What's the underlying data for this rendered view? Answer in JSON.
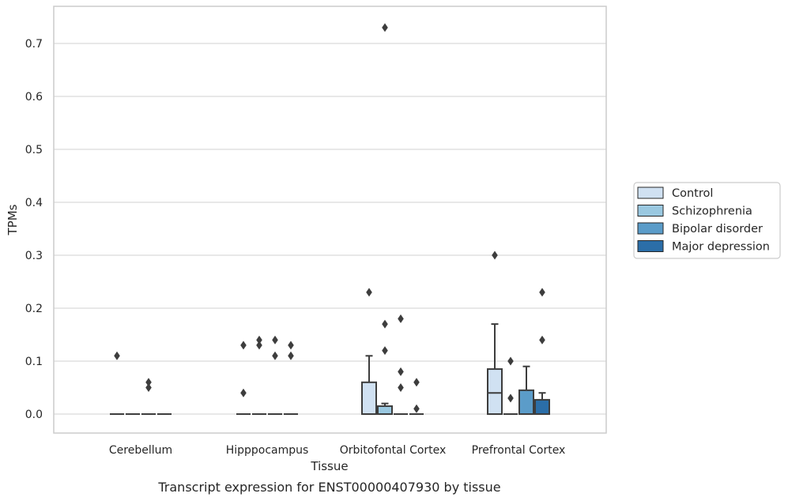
{
  "chart_data": {
    "type": "box",
    "title": "",
    "caption": "Transcript expression for ENST00000407930 by tissue",
    "xlabel": "Tissue",
    "ylabel": "TPMs",
    "ylim": [
      -0.03,
      0.77
    ],
    "yticks": [
      0.0,
      0.1,
      0.2,
      0.3,
      0.4,
      0.5,
      0.6,
      0.7
    ],
    "grid": "horizontal",
    "legend_position": "right",
    "categories": [
      "Cerebellum",
      "Hipppocampus",
      "Orbitofontal Cortex",
      "Prefrontal Cortex"
    ],
    "series": [
      {
        "name": "Control",
        "color": "#d0e1f2",
        "boxes": [
          {
            "q1": 0.0,
            "median": 0.0,
            "q3": 0.0,
            "whisker_low": 0.0,
            "whisker_high": 0.0,
            "outliers": [
              0.11
            ]
          },
          {
            "q1": 0.0,
            "median": 0.0,
            "q3": 0.0,
            "whisker_low": 0.0,
            "whisker_high": 0.0,
            "outliers": [
              0.13,
              0.04
            ]
          },
          {
            "q1": 0.0,
            "median": 0.0,
            "q3": 0.06,
            "whisker_low": 0.0,
            "whisker_high": 0.11,
            "outliers": [
              0.23
            ]
          },
          {
            "q1": 0.0,
            "median": 0.04,
            "q3": 0.085,
            "whisker_low": 0.0,
            "whisker_high": 0.17,
            "outliers": [
              0.3
            ]
          }
        ]
      },
      {
        "name": "Schizophrenia",
        "color": "#9ac8e0",
        "boxes": [
          {
            "q1": 0.0,
            "median": 0.0,
            "q3": 0.0,
            "whisker_low": 0.0,
            "whisker_high": 0.0,
            "outliers": []
          },
          {
            "q1": 0.0,
            "median": 0.0,
            "q3": 0.0,
            "whisker_low": 0.0,
            "whisker_high": 0.0,
            "outliers": [
              0.14,
              0.13
            ]
          },
          {
            "q1": 0.0,
            "median": 0.0,
            "q3": 0.015,
            "whisker_low": 0.0,
            "whisker_high": 0.02,
            "outliers": [
              0.73,
              0.17,
              0.12
            ]
          },
          {
            "q1": 0.0,
            "median": 0.0,
            "q3": 0.0,
            "whisker_low": 0.0,
            "whisker_high": 0.0,
            "outliers": [
              0.1,
              0.03
            ]
          }
        ]
      },
      {
        "name": "Bipolar disorder",
        "color": "#5b9cc9",
        "boxes": [
          {
            "q1": 0.0,
            "median": 0.0,
            "q3": 0.0,
            "whisker_low": 0.0,
            "whisker_high": 0.0,
            "outliers": [
              0.06,
              0.05
            ]
          },
          {
            "q1": 0.0,
            "median": 0.0,
            "q3": 0.0,
            "whisker_low": 0.0,
            "whisker_high": 0.0,
            "outliers": [
              0.14,
              0.11
            ]
          },
          {
            "q1": 0.0,
            "median": 0.0,
            "q3": 0.0,
            "whisker_low": 0.0,
            "whisker_high": 0.0,
            "outliers": [
              0.18,
              0.08,
              0.05
            ]
          },
          {
            "q1": 0.0,
            "median": 0.0,
            "q3": 0.045,
            "whisker_low": 0.0,
            "whisker_high": 0.09,
            "outliers": []
          }
        ]
      },
      {
        "name": "Major depression",
        "color": "#2b6ea8",
        "boxes": [
          {
            "q1": 0.0,
            "median": 0.0,
            "q3": 0.0,
            "whisker_low": 0.0,
            "whisker_high": 0.0,
            "outliers": []
          },
          {
            "q1": 0.0,
            "median": 0.0,
            "q3": 0.0,
            "whisker_low": 0.0,
            "whisker_high": 0.0,
            "outliers": [
              0.13,
              0.11
            ]
          },
          {
            "q1": 0.0,
            "median": 0.0,
            "q3": 0.0,
            "whisker_low": 0.0,
            "whisker_high": 0.0,
            "outliers": [
              0.06,
              0.01
            ]
          },
          {
            "q1": 0.0,
            "median": 0.0,
            "q3": 0.027,
            "whisker_low": 0.0,
            "whisker_high": 0.04,
            "outliers": [
              0.23,
              0.14
            ]
          }
        ]
      }
    ]
  },
  "colors": {
    "grid": "#d9d9d9",
    "frame": "#cccccc",
    "box_edge": "#3d3d3d",
    "text": "#262626"
  }
}
